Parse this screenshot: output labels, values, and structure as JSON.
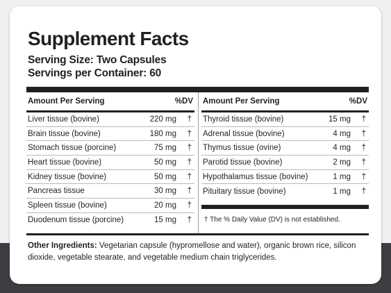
{
  "title": "Supplement Facts",
  "serving_size": "Serving Size: Two Capsules",
  "servings_per_container": "Servings per Container: 60",
  "table": {
    "col_amount_header": "Amount Per Serving",
    "col_dv_header": "%DV",
    "left_rows": [
      {
        "name": "Liver tissue (bovine)",
        "amount": "220 mg",
        "dv": "†"
      },
      {
        "name": "Brain tissue (bovine)",
        "amount": "180 mg",
        "dv": "†"
      },
      {
        "name": "Stomach tissue (porcine)",
        "amount": "75 mg",
        "dv": "†"
      },
      {
        "name": "Heart tissue (bovine)",
        "amount": "50 mg",
        "dv": "†"
      },
      {
        "name": "Kidney tissue (bovine)",
        "amount": "50 mg",
        "dv": "†"
      },
      {
        "name": "Pancreas tissue",
        "amount": "30 mg",
        "dv": "†"
      },
      {
        "name": "Spleen tissue (bovine)",
        "amount": "20 mg",
        "dv": "†"
      },
      {
        "name": "Duodenum tissue (porcine)",
        "amount": "15 mg",
        "dv": "†"
      }
    ],
    "right_rows": [
      {
        "name": "Thyroid tissue (bovine)",
        "amount": "15 mg",
        "dv": "†"
      },
      {
        "name": "Adrenal tissue (bovine)",
        "amount": "4 mg",
        "dv": "†"
      },
      {
        "name": "Thymus tissue (ovine)",
        "amount": "4 mg",
        "dv": "†"
      },
      {
        "name": "Parotid tissue (bovine)",
        "amount": "2 mg",
        "dv": "†"
      },
      {
        "name": "Hypothalamus tissue (bovine)",
        "amount": "1 mg",
        "dv": "†"
      },
      {
        "name": "Pituitary tissue (bovine)",
        "amount": "1 mg",
        "dv": "†"
      }
    ]
  },
  "footnote": "† The % Daily Value (DV) is not established.",
  "other_ingredients": {
    "label": "Other Ingredients:",
    "text": " Vegetarian capsule (hypromellose and water), organic brown rice, silicon dioxide, vegetable stearate, and vegetable medium chain triglycerides."
  },
  "colors": {
    "ink": "#231f20",
    "card": "#ffffff",
    "background": "#eef0f2",
    "dark_band": "#3e3e42"
  }
}
